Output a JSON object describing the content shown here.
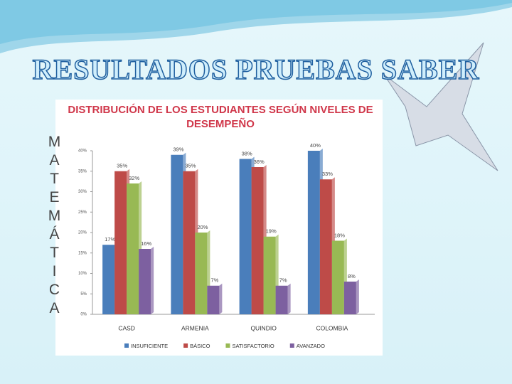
{
  "slide": {
    "title": "RESULTADOS PRUEBAS SABER",
    "side_label": "MATEMÁTICA"
  },
  "chart_data": {
    "type": "bar",
    "title": "DISTRIBUCIÓN DE LOS ESTUDIANTES SEGÚN NIVELES DE DESEMPEÑO",
    "categories": [
      "CASD",
      "ARMENIA",
      "QUINDIO",
      "COLOMBIA"
    ],
    "series": [
      {
        "name": "INSUFICIENTE",
        "color": "#4a7ebb",
        "values": [
          17,
          39,
          38,
          40
        ],
        "value_labels": [
          "17%",
          "39%",
          "38%",
          "40%"
        ]
      },
      {
        "name": "BÁSICO",
        "color": "#be4b48",
        "values": [
          35,
          35,
          36,
          33
        ],
        "value_labels": [
          "35%",
          "35%",
          "36%",
          "33%"
        ]
      },
      {
        "name": "SATISFACTORIO",
        "color": "#98b954",
        "values": [
          32,
          20,
          19,
          18
        ],
        "value_labels": [
          "32%",
          "20%",
          "19%",
          "18%"
        ]
      },
      {
        "name": "AVANZADO",
        "color": "#7d60a0",
        "values": [
          16,
          7,
          7,
          8
        ],
        "value_labels": [
          "16%",
          "7%",
          "7%",
          "8%"
        ]
      }
    ],
    "ylim": [
      0,
      40
    ],
    "yticks": [
      {
        "value": 0,
        "label": "0%"
      },
      {
        "value": 5,
        "label": "5%"
      },
      {
        "value": 10,
        "label": "10%"
      },
      {
        "value": 15,
        "label": "15%"
      },
      {
        "value": 20,
        "label": "20%"
      },
      {
        "value": 25,
        "label": "25%"
      },
      {
        "value": 30,
        "label": "30%"
      },
      {
        "value": 35,
        "label": "35%"
      },
      {
        "value": 40,
        "label": "40%"
      }
    ],
    "grid": false,
    "legend": "bottom"
  }
}
